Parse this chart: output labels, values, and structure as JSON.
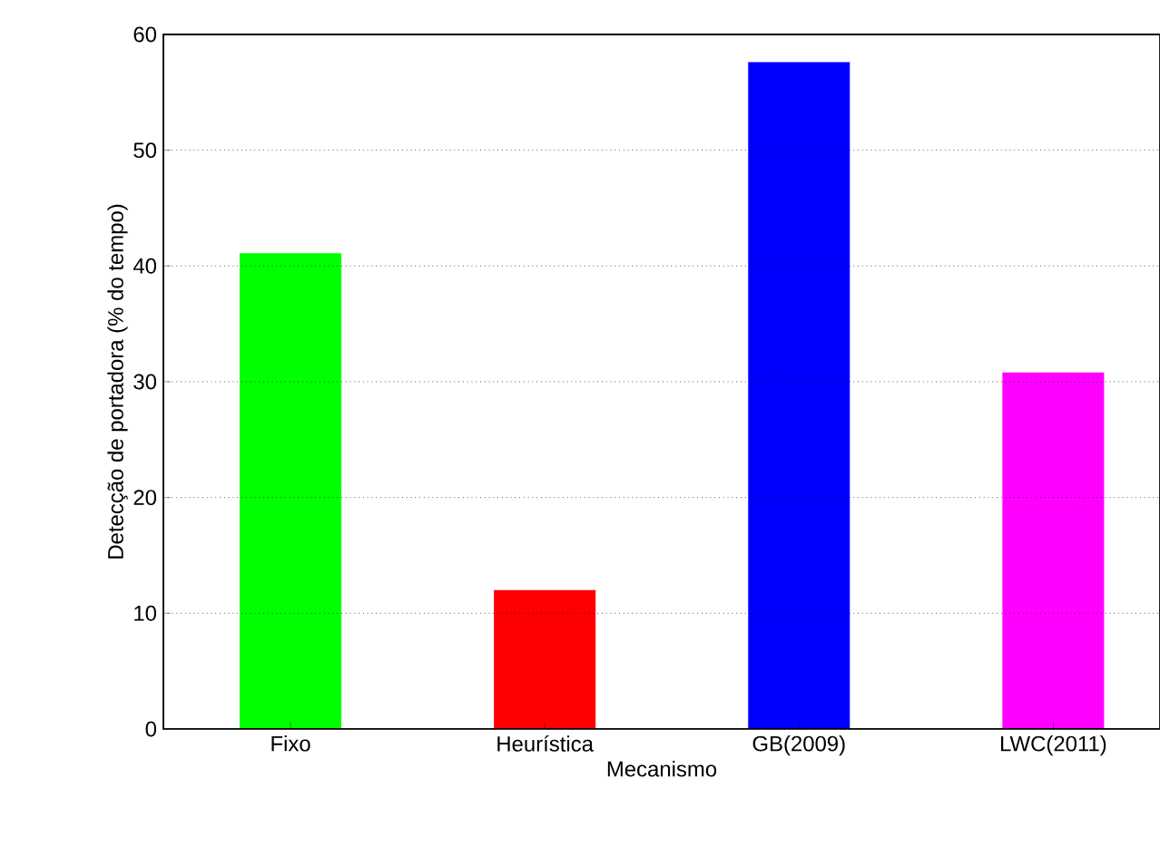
{
  "chart_data": {
    "type": "bar",
    "xlabel": "Mecanismo",
    "ylabel": "Detecção de portadora (% do tempo)",
    "categories": [
      "Fixo",
      "Heurística",
      "GB(2009)",
      "LWC(2011)"
    ],
    "values": [
      41.1,
      12.0,
      57.6,
      30.8
    ],
    "colors": [
      "#00ff00",
      "#ff0000",
      "#0000ff",
      "#ff00ff"
    ],
    "ylim": [
      0,
      60
    ],
    "yticks": [
      0,
      10,
      20,
      30,
      40,
      50,
      60
    ],
    "grid": "y"
  }
}
